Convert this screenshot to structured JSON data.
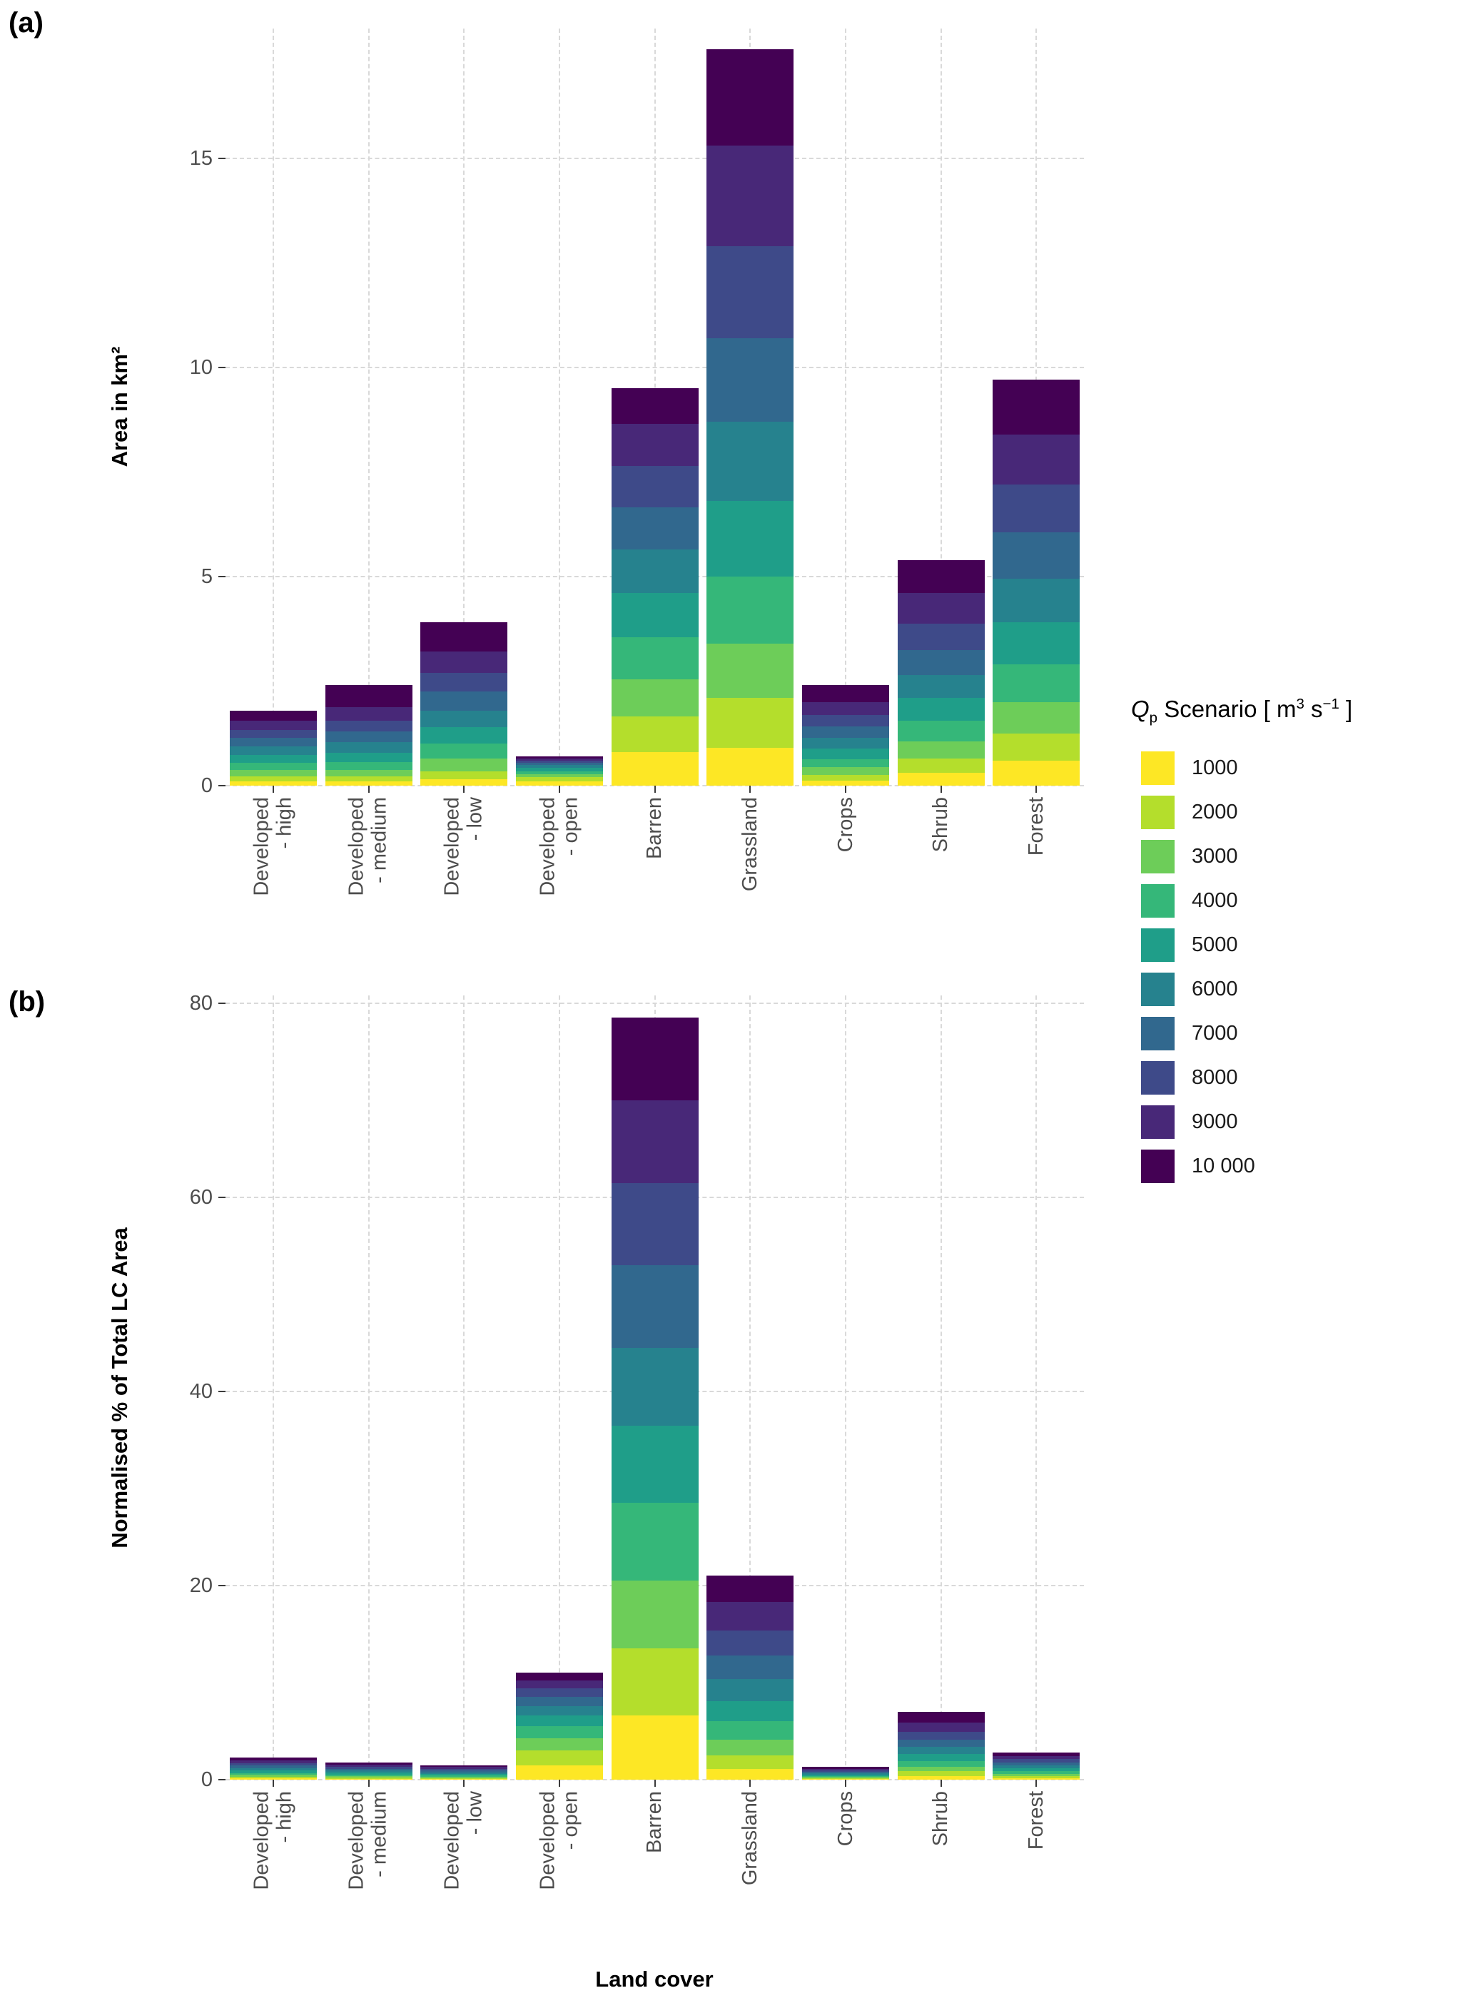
{
  "page": {
    "background": "#ffffff"
  },
  "panels": [
    {
      "label": "(a)",
      "ylabel": "Area in km²"
    },
    {
      "label": "(b)",
      "ylabel": "Normalised % of Total LC Area",
      "xlabel": "Land cover"
    }
  ],
  "legend": {
    "title_parts": {
      "q": "Q",
      "sub": "p",
      "mid": " Scenario [ m",
      "sup1": "3",
      "mid2": " s",
      "sup2": "−1",
      "end": " ]"
    },
    "items": [
      {
        "label": "1000",
        "color": "#FDE725"
      },
      {
        "label": "2000",
        "color": "#B4DE2C"
      },
      {
        "label": "3000",
        "color": "#6DCD59"
      },
      {
        "label": "4000",
        "color": "#35B779"
      },
      {
        "label": "5000",
        "color": "#1F9E89"
      },
      {
        "label": "6000",
        "color": "#26828E"
      },
      {
        "label": "7000",
        "color": "#31688E"
      },
      {
        "label": "8000",
        "color": "#3E4A89"
      },
      {
        "label": "9000",
        "color": "#482878"
      },
      {
        "label": "10 000",
        "color": "#440154"
      }
    ]
  },
  "chart_data": [
    {
      "type": "bar",
      "stacked": true,
      "panel": "(a)",
      "legend_title": "Qp Scenario [ m³ s⁻¹ ]",
      "legend_position": "right",
      "grid": "dashed",
      "xlabel": "",
      "ylabel": "Area in km²",
      "ylim": [
        0,
        18.1
      ],
      "yticks": [
        0,
        5,
        10,
        15
      ],
      "categories": [
        "Developed\n- high",
        "Developed\n- medium",
        "Developed\n- low",
        "Developed\n- open",
        "Barren",
        "Grassland",
        "Crops",
        "Shrub",
        "Forest"
      ],
      "series": [
        {
          "name": "1000",
          "color": "#FDE725",
          "values": [
            0.1,
            0.1,
            0.15,
            0.1,
            0.8,
            0.9,
            0.12,
            0.3,
            0.6
          ]
        },
        {
          "name": "2000",
          "color": "#B4DE2C",
          "values": [
            0.12,
            0.12,
            0.2,
            0.1,
            0.85,
            1.2,
            0.14,
            0.35,
            0.65
          ]
        },
        {
          "name": "3000",
          "color": "#6DCD59",
          "values": [
            0.15,
            0.15,
            0.3,
            0.08,
            0.9,
            1.3,
            0.18,
            0.4,
            0.75
          ]
        },
        {
          "name": "4000",
          "color": "#35B779",
          "values": [
            0.17,
            0.2,
            0.35,
            0.07,
            1.0,
            1.6,
            0.2,
            0.5,
            0.9
          ]
        },
        {
          "name": "5000",
          "color": "#1F9E89",
          "values": [
            0.2,
            0.22,
            0.4,
            0.07,
            1.05,
            1.8,
            0.25,
            0.55,
            1.0
          ]
        },
        {
          "name": "6000",
          "color": "#26828E",
          "values": [
            0.2,
            0.25,
            0.4,
            0.07,
            1.05,
            1.9,
            0.25,
            0.55,
            1.05
          ]
        },
        {
          "name": "7000",
          "color": "#31688E",
          "values": [
            0.2,
            0.25,
            0.45,
            0.06,
            1.0,
            2.0,
            0.27,
            0.6,
            1.1
          ]
        },
        {
          "name": "8000",
          "color": "#3E4A89",
          "values": [
            0.2,
            0.27,
            0.45,
            0.05,
            1.0,
            2.2,
            0.28,
            0.62,
            1.15
          ]
        },
        {
          "name": "9000",
          "color": "#482878",
          "values": [
            0.21,
            0.32,
            0.5,
            0.05,
            1.0,
            2.4,
            0.31,
            0.73,
            1.2
          ]
        },
        {
          "name": "10 000",
          "color": "#440154",
          "values": [
            0.25,
            0.52,
            0.7,
            0.05,
            0.85,
            2.3,
            0.4,
            0.8,
            1.3
          ]
        }
      ]
    },
    {
      "type": "bar",
      "stacked": true,
      "panel": "(b)",
      "legend_title": "Qp Scenario [ m³ s⁻¹ ]",
      "legend_position": "right",
      "grid": "dashed",
      "xlabel": "Land cover",
      "ylabel": "Normalised % of Total LC Area",
      "ylim": [
        0,
        80.8
      ],
      "yticks": [
        0,
        20,
        40,
        60,
        80
      ],
      "categories": [
        "Developed\n- high",
        "Developed\n- medium",
        "Developed\n- low",
        "Developed\n- open",
        "Barren",
        "Grassland",
        "Crops",
        "Shrub",
        "Forest"
      ],
      "series": [
        {
          "name": "1000",
          "color": "#FDE725",
          "values": [
            0.15,
            0.1,
            0.08,
            1.5,
            6.6,
            1.1,
            0.08,
            0.4,
            0.17
          ]
        },
        {
          "name": "2000",
          "color": "#B4DE2C",
          "values": [
            0.15,
            0.12,
            0.1,
            1.5,
            6.9,
            1.4,
            0.09,
            0.45,
            0.2
          ]
        },
        {
          "name": "3000",
          "color": "#6DCD59",
          "values": [
            0.2,
            0.15,
            0.12,
            1.3,
            7.0,
            1.6,
            0.1,
            0.5,
            0.24
          ]
        },
        {
          "name": "4000",
          "color": "#35B779",
          "values": [
            0.2,
            0.17,
            0.14,
            1.2,
            8.0,
            1.9,
            0.12,
            0.6,
            0.27
          ]
        },
        {
          "name": "5000",
          "color": "#1F9E89",
          "values": [
            0.25,
            0.2,
            0.16,
            1.1,
            8.0,
            2.1,
            0.13,
            0.7,
            0.3
          ]
        },
        {
          "name": "6000",
          "color": "#26828E",
          "values": [
            0.25,
            0.2,
            0.16,
            1.0,
            8.0,
            2.3,
            0.14,
            0.7,
            0.3
          ]
        },
        {
          "name": "7000",
          "color": "#31688E",
          "values": [
            0.25,
            0.2,
            0.17,
            0.9,
            8.5,
            2.4,
            0.14,
            0.75,
            0.31
          ]
        },
        {
          "name": "8000",
          "color": "#3E4A89",
          "values": [
            0.25,
            0.2,
            0.18,
            0.9,
            8.5,
            2.6,
            0.15,
            0.8,
            0.32
          ]
        },
        {
          "name": "9000",
          "color": "#482878",
          "values": [
            0.3,
            0.22,
            0.19,
            0.8,
            8.5,
            2.9,
            0.17,
            1.0,
            0.34
          ]
        },
        {
          "name": "10 000",
          "color": "#440154",
          "values": [
            0.3,
            0.24,
            0.2,
            0.8,
            8.5,
            2.7,
            0.18,
            1.1,
            0.35
          ]
        }
      ]
    }
  ]
}
